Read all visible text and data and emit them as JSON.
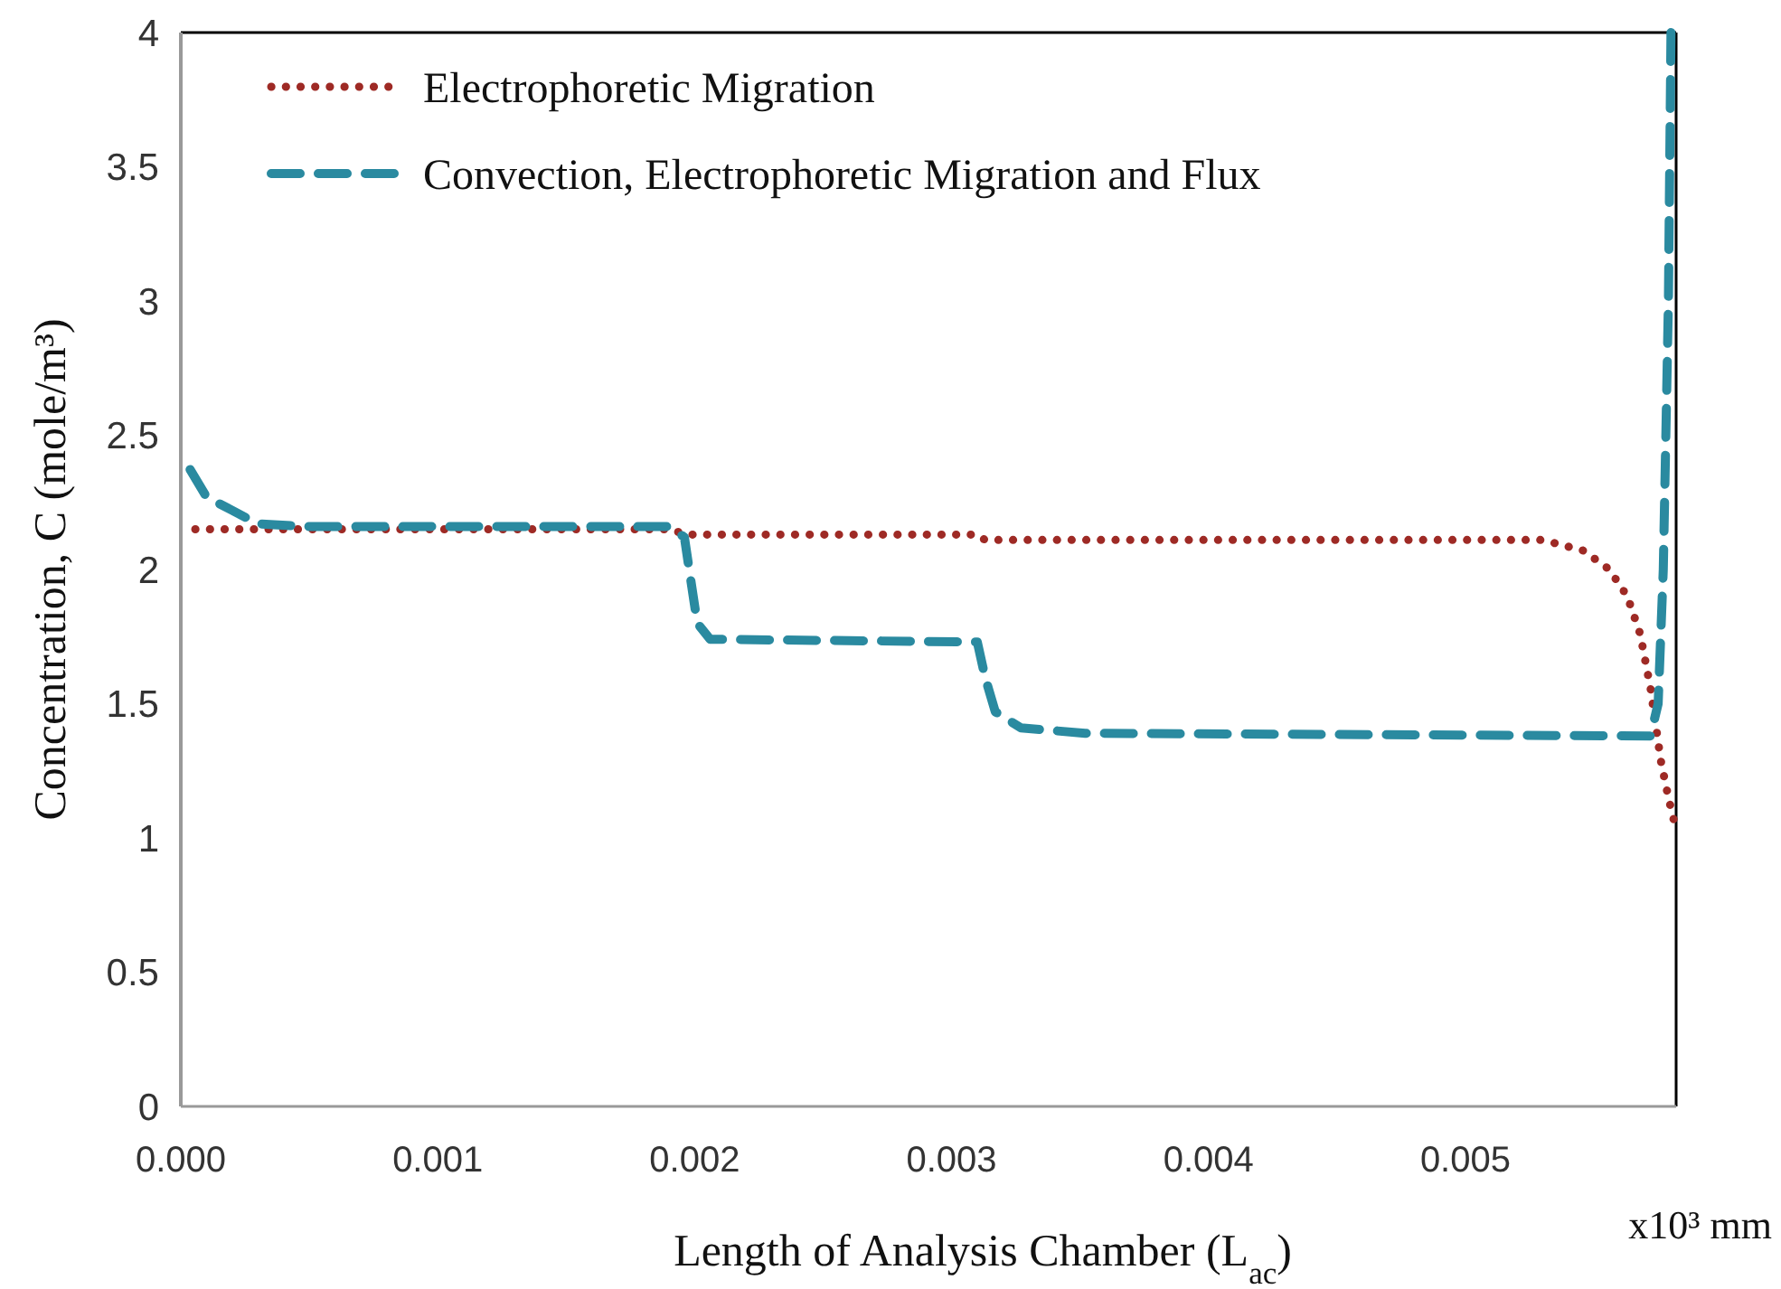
{
  "chart_data": {
    "type": "line",
    "xlabel": "Length of Analysis Chamber (L$_{ac}$)",
    "ylabel": "Concentration, C (mole/m³)",
    "annotations": [
      "x10³ mm"
    ],
    "xlim": [
      0,
      0.00582
    ],
    "ylim": [
      0,
      4
    ],
    "xticks": [
      {
        "value": 0,
        "label": "0.000"
      },
      {
        "value": 0.001,
        "label": "0.001"
      },
      {
        "value": 0.002,
        "label": "0.002"
      },
      {
        "value": 0.003,
        "label": "0.003"
      },
      {
        "value": 0.004,
        "label": "0.004"
      },
      {
        "value": 0.005,
        "label": "0.005"
      }
    ],
    "yticks": [
      0,
      0.5,
      1,
      1.5,
      2,
      2.5,
      3,
      3.5,
      4
    ],
    "grid": false,
    "legend": "top left",
    "marker": "none",
    "series": [
      {
        "name": "Electrophoretic Migration",
        "color": "#9e2a25",
        "line_style": "dotted",
        "x": [
          0,
          0.0019,
          0.00197,
          0.0031,
          0.00313,
          0.0053,
          0.00546,
          0.00556,
          0.00563,
          0.00568,
          0.00572,
          0.00576,
          0.00579,
          0.00581
        ],
        "values": [
          2.15,
          2.15,
          2.13,
          2.13,
          2.11,
          2.11,
          2.07,
          2.0,
          1.9,
          1.76,
          1.56,
          1.29,
          1.15,
          1.07
        ]
      },
      {
        "name": "Convection, Electrophoretic Migration and Flux",
        "color": "#2a8aa0",
        "line_style": "dashed",
        "x": [
          0,
          0.0001,
          0.0003,
          0.0005,
          0.0019,
          0.00196,
          0.00201,
          0.00206,
          0.0031,
          0.00313,
          0.00317,
          0.00327,
          0.00352,
          0.00572,
          0.00575,
          0.00577,
          0.00579,
          0.0058
        ],
        "values": [
          2.43,
          2.27,
          2.17,
          2.16,
          2.16,
          2.12,
          1.8,
          1.74,
          1.73,
          1.6,
          1.47,
          1.41,
          1.39,
          1.38,
          1.5,
          2.0,
          3.0,
          4.0
        ]
      }
    ]
  }
}
